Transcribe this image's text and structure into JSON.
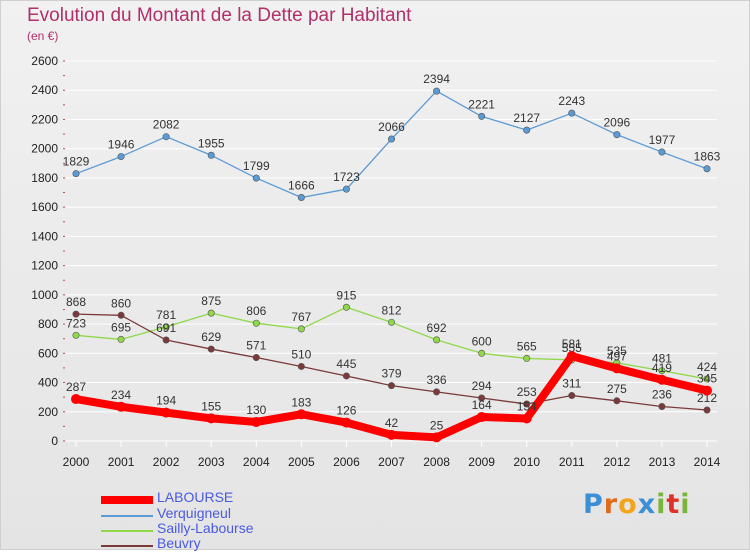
{
  "header": {
    "title": "Evolution du Montant de la Dette par Habitant",
    "subtitle": "(en €)"
  },
  "logo": {
    "letters": [
      "P",
      "r",
      "o",
      "x",
      "i",
      "t",
      "i"
    ]
  },
  "chart_data": {
    "type": "line",
    "title": "Evolution du Montant de la Dette par Habitant",
    "subtitle": "(en €)",
    "xlabel": "",
    "ylabel": "",
    "ylim": [
      0,
      2600
    ],
    "yticks": [
      0,
      200,
      400,
      600,
      800,
      1000,
      1200,
      1400,
      1600,
      1800,
      2000,
      2200,
      2400,
      2600
    ],
    "grid": "horizontal",
    "legend_position": "bottom-left",
    "x": [
      "2000",
      "2001",
      "2002",
      "2003",
      "2004",
      "2005",
      "2006",
      "2007",
      "2008",
      "2009",
      "2010",
      "2011",
      "2012",
      "2013",
      "2014"
    ],
    "series": [
      {
        "name": "LABOURSE",
        "color": "#ff0000",
        "values": [
          287,
          234,
          194,
          155,
          130,
          183,
          126,
          42,
          25,
          164,
          154,
          581,
          497,
          419,
          345
        ]
      },
      {
        "name": "Verquigneul",
        "color": "#5b9bd5",
        "values": [
          1829,
          1946,
          2082,
          1955,
          1799,
          1666,
          1723,
          2066,
          2394,
          2221,
          2127,
          2243,
          2096,
          1977,
          1863
        ]
      },
      {
        "name": "Sailly-Labourse",
        "color": "#8fd84a",
        "values": [
          723,
          695,
          781,
          875,
          806,
          767,
          915,
          812,
          692,
          600,
          565,
          555,
          535,
          481,
          424
        ]
      },
      {
        "name": "Beuvry",
        "color": "#7a3a3a",
        "values": [
          868,
          860,
          691,
          629,
          571,
          510,
          445,
          379,
          336,
          294,
          253,
          311,
          275,
          236,
          212
        ]
      }
    ]
  }
}
